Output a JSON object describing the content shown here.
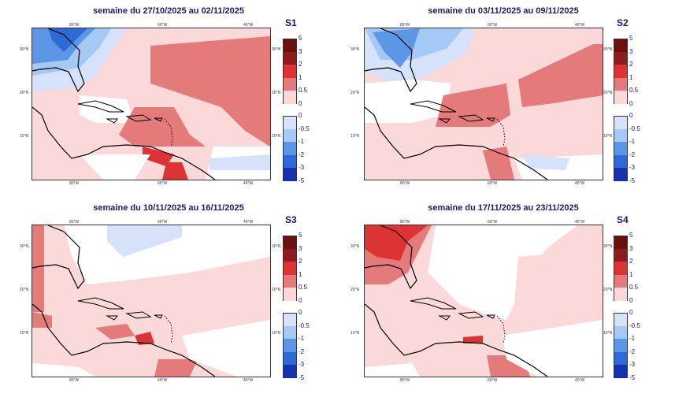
{
  "figure": {
    "panels": [
      {
        "id": "S1",
        "title": "semaine du 27/10/2025 au 02/11/2025"
      },
      {
        "id": "S2",
        "title": "semaine du 03/11/2025 au 09/11/2025"
      },
      {
        "id": "S3",
        "title": "semaine du 10/11/2025 au 16/11/2025"
      },
      {
        "id": "S4",
        "title": "semaine du 17/11/2025 au 23/11/2025"
      }
    ],
    "lon_ticks": [
      "80°W",
      "60°W",
      "40°W"
    ],
    "lat_ticks": [
      "30°N",
      "20°N",
      "10°N"
    ],
    "colorbar_positive": {
      "labels": [
        "5",
        "3",
        "2",
        "1",
        "0.5",
        "0"
      ],
      "colors": [
        "#6b0f10",
        "#8e1c1c",
        "#dc3434",
        "#e47a7a",
        "#fcd9d9"
      ]
    },
    "colorbar_negative": {
      "labels": [
        "0",
        "-0.5",
        "-1",
        "-2",
        "-3",
        "-5"
      ],
      "colors": [
        "#d6e2fa",
        "#a3c9f4",
        "#5b97e6",
        "#2e6ad6",
        "#1530b0"
      ]
    }
  }
}
